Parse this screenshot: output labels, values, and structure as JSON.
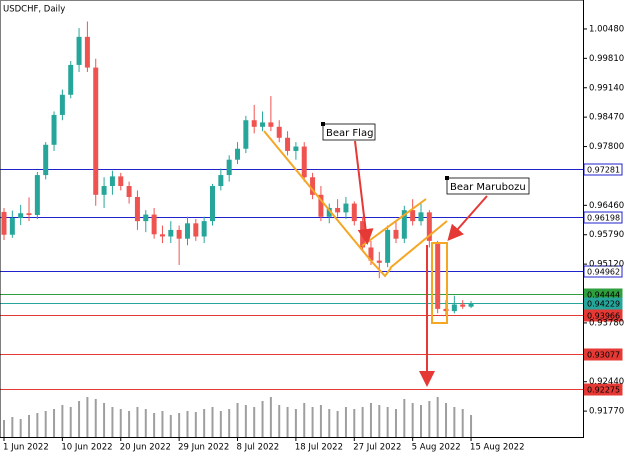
{
  "chart_data": {
    "type": "candlestick",
    "title": "USDCHF, Daily",
    "categories": [
      "1 Jun 2022",
      null,
      null,
      null,
      null,
      null,
      null,
      "10 Jun 2022",
      null,
      null,
      null,
      null,
      null,
      null,
      "20 Jun 2022",
      null,
      null,
      null,
      null,
      null,
      null,
      "29 Jun 2022",
      null,
      null,
      null,
      null,
      null,
      null,
      "8 Jul 2022",
      null,
      null,
      null,
      null,
      null,
      null,
      "18 Jul 2022",
      null,
      null,
      null,
      null,
      null,
      null,
      "27 Jul 2022",
      null,
      null,
      null,
      null,
      null,
      null,
      "5 Aug 2022",
      null,
      null,
      null,
      null,
      null,
      null,
      "15 Aug 2022"
    ],
    "open": [
      0.9631,
      0.9579,
      0.9617,
      0.9628,
      0.9624,
      0.9715,
      0.9784,
      0.9852,
      0.9898,
      0.9966,
      1.003,
      0.996,
      0.967,
      0.969,
      0.9712,
      0.969,
      0.9665,
      0.961,
      0.9625,
      0.958,
      0.9575,
      0.959,
      0.957,
      0.9605,
      0.9575,
      0.961,
      0.969,
      0.9715,
      0.975,
      0.9775,
      0.984,
      0.9825,
      0.9835,
      0.9825,
      0.98,
      0.977,
      0.978,
      0.971,
      0.967,
      0.962,
      0.964,
      0.963,
      0.965,
      0.961,
      0.955,
      0.952,
      0.9515,
      0.959,
      0.957,
      0.9635,
      0.961,
      0.963,
      0.956,
      0.941,
      0.9405,
      0.942,
      0.9415
    ],
    "high": [
      0.964,
      0.9634,
      0.9647,
      0.9664,
      0.9722,
      0.979,
      0.986,
      0.991,
      0.9975,
      1.005,
      1.0065,
      0.998,
      0.971,
      0.9725,
      0.972,
      0.97,
      0.968,
      0.9635,
      0.964,
      0.96,
      0.961,
      0.96,
      0.962,
      0.9615,
      0.962,
      0.9695,
      0.973,
      0.976,
      0.979,
      0.985,
      0.9875,
      0.986,
      0.9895,
      0.984,
      0.9815,
      0.979,
      0.979,
      0.972,
      0.969,
      0.965,
      0.966,
      0.9665,
      0.9655,
      0.962,
      0.9565,
      0.954,
      0.96,
      0.961,
      0.9645,
      0.966,
      0.965,
      0.9635,
      0.9565,
      0.943,
      0.944,
      0.943,
      0.9428
    ],
    "low": [
      0.9567,
      0.9572,
      0.9601,
      0.961,
      0.9615,
      0.9705,
      0.977,
      0.984,
      0.989,
      0.995,
      0.995,
      0.9645,
      0.964,
      0.967,
      0.968,
      0.965,
      0.959,
      0.9585,
      0.957,
      0.956,
      0.956,
      0.951,
      0.9555,
      0.9565,
      0.956,
      0.96,
      0.968,
      0.97,
      0.974,
      0.9765,
      0.981,
      0.9815,
      0.9815,
      0.979,
      0.976,
      0.975,
      0.97,
      0.966,
      0.961,
      0.9605,
      0.962,
      0.9615,
      0.96,
      0.954,
      0.951,
      0.948,
      0.9505,
      0.956,
      0.956,
      0.96,
      0.96,
      0.955,
      0.94,
      0.9395,
      0.94,
      0.941,
      0.9412
    ],
    "close": [
      0.9579,
      0.9617,
      0.9628,
      0.9624,
      0.9715,
      0.9784,
      0.9852,
      0.9898,
      0.9966,
      1.003,
      0.996,
      0.967,
      0.969,
      0.9712,
      0.969,
      0.9665,
      0.961,
      0.9625,
      0.958,
      0.9575,
      0.959,
      0.957,
      0.9605,
      0.9575,
      0.961,
      0.969,
      0.9715,
      0.975,
      0.9775,
      0.984,
      0.9825,
      0.9835,
      0.9825,
      0.98,
      0.977,
      0.978,
      0.971,
      0.967,
      0.962,
      0.964,
      0.963,
      0.965,
      0.961,
      0.955,
      0.952,
      0.9515,
      0.959,
      0.957,
      0.9635,
      0.961,
      0.963,
      0.9565,
      0.941,
      0.9405,
      0.942,
      0.9415,
      0.9423
    ],
    "volumes": [
      17,
      20,
      18,
      22,
      24,
      26,
      28,
      32,
      30,
      36,
      40,
      38,
      34,
      30,
      28,
      26,
      30,
      28,
      24,
      26,
      22,
      24,
      26,
      25,
      28,
      30,
      26,
      28,
      34,
      32,
      30,
      36,
      40,
      32,
      30,
      28,
      34,
      30,
      32,
      28,
      26,
      30,
      28,
      30,
      34,
      32,
      30,
      28,
      38,
      34,
      32,
      36,
      40,
      34,
      30,
      28,
      22
    ],
    "up_color": "#26a69a",
    "down_color": "#ef5350",
    "volume_color": "#9e9e9e",
    "ylim": [
      0.9118,
      1.0114
    ],
    "yticks": [
      {
        "value": 1.0048,
        "label": "1.00480"
      },
      {
        "value": 0.9981,
        "label": "0.99810"
      },
      {
        "value": 0.9914,
        "label": "0.99140"
      },
      {
        "value": 0.9847,
        "label": "0.98470"
      },
      {
        "value": 0.978,
        "label": "0.97800"
      },
      {
        "value": 0.9646,
        "label": "0.96460"
      },
      {
        "value": 0.9579,
        "label": "0.95790"
      },
      {
        "value": 0.9512,
        "label": "0.95120"
      },
      {
        "value": 0.9378,
        "label": "0.93780"
      },
      {
        "value": 0.9244,
        "label": "0.92440"
      },
      {
        "value": 0.9177,
        "label": "0.91770"
      }
    ],
    "levels": [
      {
        "value": 0.97281,
        "color": "#2222cc",
        "style": "outline"
      },
      {
        "value": 0.96198,
        "color": "#2222cc",
        "style": "outline"
      },
      {
        "value": 0.94962,
        "color": "#2222cc",
        "style": "outline"
      },
      {
        "value": 0.94444,
        "color": "#2e9e3e",
        "style": "filled"
      },
      {
        "value": 0.94229,
        "color": "#26a69a",
        "style": "filled"
      },
      {
        "value": 0.93966,
        "color": "#e53935",
        "style": "filled"
      },
      {
        "value": 0.93077,
        "color": "#e53935",
        "style": "filled"
      },
      {
        "value": 0.92275,
        "color": "#e53935",
        "style": "filled"
      }
    ],
    "annotations": [
      "Bear Flag",
      "Bear Marubozu"
    ]
  }
}
